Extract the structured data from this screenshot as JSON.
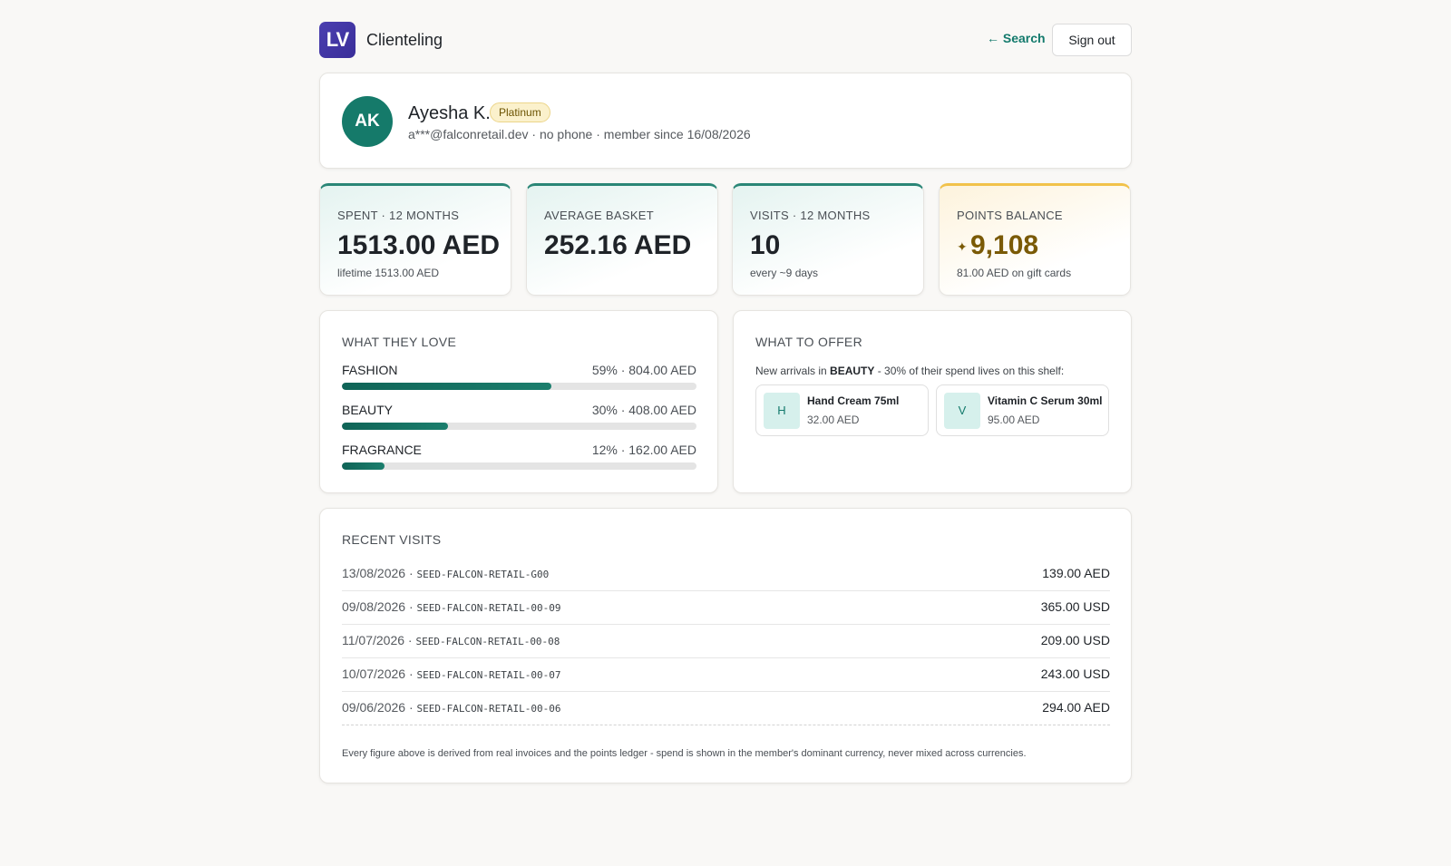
{
  "app": {
    "logo_text": "LV",
    "title": "Clienteling"
  },
  "header": {
    "search_link": "← Search",
    "signout_label": "Sign out"
  },
  "profile": {
    "initials": "AK",
    "name": "Ayesha K.",
    "tier": "Platinum",
    "meta": "a***@falconretail.dev · no phone · member since 16/08/2026"
  },
  "stats": [
    {
      "label": "SPENT · 12 MONTHS",
      "value": "1513.00 AED",
      "sub": "lifetime 1513.00 AED"
    },
    {
      "label": "AVERAGE BASKET",
      "value": "252.16 AED",
      "sub": ""
    },
    {
      "label": "VISITS · 12 MONTHS",
      "value": "10",
      "sub": "every ~9 days"
    },
    {
      "label": "POINTS BALANCE",
      "icon": "sparkle-icon",
      "value": "9,108",
      "sub": "81.00 AED on gift cards"
    }
  ],
  "love": {
    "title": "WHAT THEY LOVE",
    "categories": [
      {
        "name": "FASHION",
        "detail": "59% · 804.00 AED",
        "share": 0.59
      },
      {
        "name": "BEAUTY",
        "detail": "30% · 408.00 AED",
        "share": 0.3
      },
      {
        "name": "FRAGRANCE",
        "detail": "12% · 162.00 AED",
        "share": 0.12
      }
    ]
  },
  "offer": {
    "title": "WHAT TO OFFER",
    "text_prefix": "New arrivals in ",
    "text_category": "BEAUTY",
    "text_suffix": " - 30% of their spend lives on this shelf:",
    "products": [
      {
        "initial": "H",
        "name": "Hand Cream 75ml",
        "price": "32.00 AED"
      },
      {
        "initial": "V",
        "name": "Vitamin C Serum 30ml",
        "price": "95.00 AED"
      }
    ]
  },
  "visits": {
    "title": "RECENT VISITS",
    "rows": [
      {
        "date": "13/08/2026",
        "code": "SEED-FALCON-RETAIL-G00",
        "amount": "139.00 AED"
      },
      {
        "date": "09/08/2026",
        "code": "SEED-FALCON-RETAIL-00-09",
        "amount": "365.00 USD"
      },
      {
        "date": "11/07/2026",
        "code": "SEED-FALCON-RETAIL-00-08",
        "amount": "209.00 USD"
      },
      {
        "date": "10/07/2026",
        "code": "SEED-FALCON-RETAIL-00-07",
        "amount": "243.00 USD"
      },
      {
        "date": "09/06/2026",
        "code": "SEED-FALCON-RETAIL-00-06",
        "amount": "294.00 AED"
      }
    ],
    "footnote": "Every figure above is derived from real invoices and the points ledger - spend is shown in the member's dominant currency, never mixed across currencies."
  },
  "colors": {
    "accent": "#137a6c",
    "bar": "#0f6457",
    "gold": "#f1c24a",
    "logo": "#4b3fb0"
  }
}
